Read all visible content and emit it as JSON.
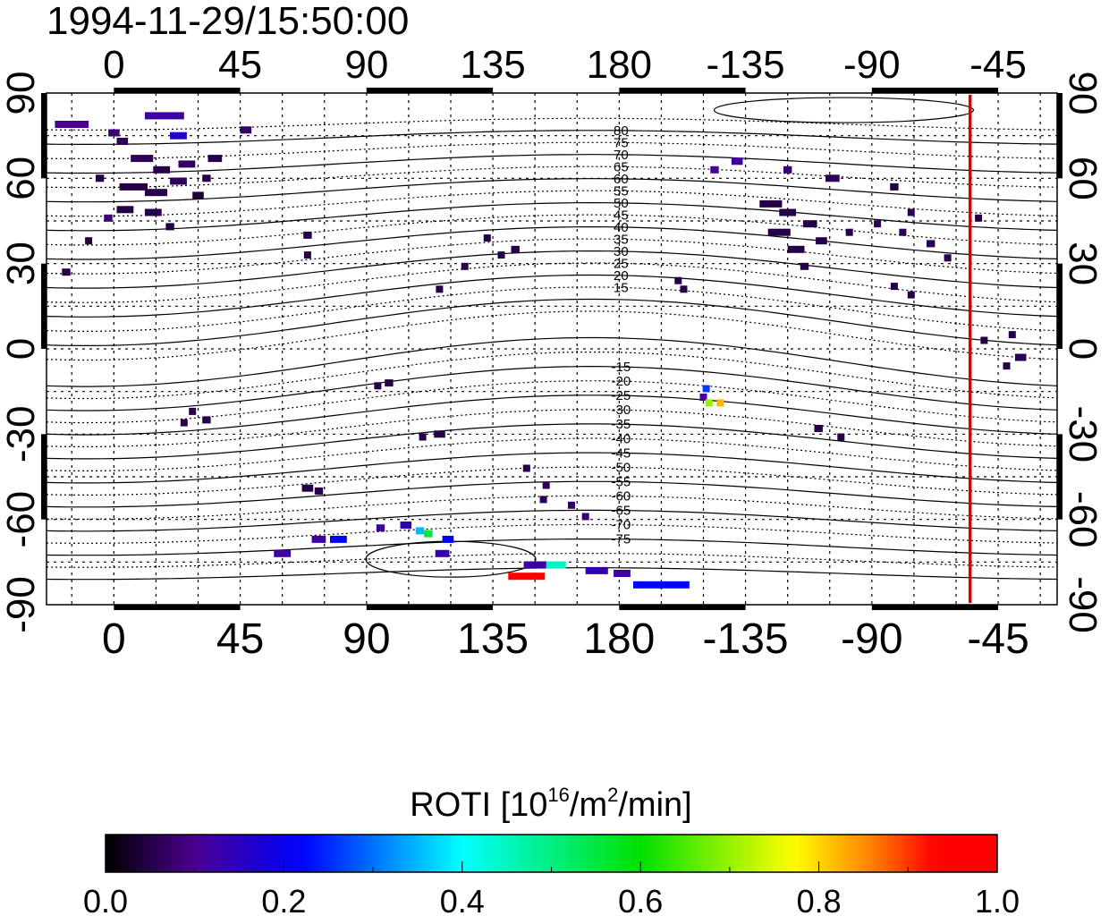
{
  "title": "1994-11-29/15:50:00",
  "chart_data": {
    "type": "map",
    "title": "1994-11-29/15:50:00",
    "x_axis": {
      "label": "Longitude",
      "range": [
        -24,
        336
      ],
      "ticks": [
        "0",
        "45",
        "90",
        "135",
        "180",
        "-135",
        "-90",
        "-45"
      ],
      "tick_values": [
        0,
        45,
        90,
        135,
        180,
        225,
        270,
        315
      ]
    },
    "y_axis": {
      "label": "Latitude",
      "range": [
        -90,
        90
      ],
      "ticks": [
        "90",
        "60",
        "30",
        "0",
        "-30",
        "-60",
        "-90"
      ],
      "tick_values": [
        90,
        60,
        30,
        0,
        -30,
        -60,
        -90
      ]
    },
    "grid": true,
    "terminator_longitude": -55,
    "terminator_color": "#dd0000",
    "magnetic_latitude_labels": [
      "80",
      "75",
      "70",
      "65",
      "60",
      "55",
      "50",
      "45",
      "40",
      "35",
      "30",
      "25",
      "20",
      "15",
      "-15",
      "-20",
      "-25",
      "-30",
      "-35",
      "-40",
      "-45",
      "-50",
      "-55",
      "-60",
      "-65",
      "-70",
      "-75"
    ],
    "magnetic_latitude_values": [
      80,
      75,
      70,
      65,
      60,
      55,
      50,
      45,
      40,
      35,
      30,
      25,
      20,
      15,
      -15,
      -20,
      -25,
      -30,
      -35,
      -40,
      -45,
      -50,
      -55,
      -60,
      -65,
      -70,
      -75
    ],
    "points_format": [
      "lon",
      "lat",
      "roti",
      "lon_span"
    ],
    "points": [
      [
        -15,
        79,
        0.1,
        12
      ],
      [
        18,
        82,
        0.12,
        14
      ],
      [
        0,
        76,
        0.08,
        4
      ],
      [
        23,
        75,
        0.16,
        6
      ],
      [
        10,
        67,
        0.06,
        8
      ],
      [
        17,
        63,
        0.05,
        6
      ],
      [
        26,
        65,
        0.07,
        6
      ],
      [
        36,
        67,
        0.05,
        5
      ],
      [
        7,
        57,
        0.05,
        10
      ],
      [
        15,
        55,
        0.05,
        8
      ],
      [
        23,
        59,
        0.06,
        6
      ],
      [
        30,
        54,
        0.04,
        4
      ],
      [
        4,
        49,
        0.05,
        6
      ],
      [
        14,
        48,
        0.05,
        6
      ],
      [
        20,
        43,
        0.05,
        3
      ],
      [
        -2,
        46,
        0.08,
        3
      ],
      [
        -9,
        38,
        0.04,
        2
      ],
      [
        -17,
        27,
        0.05,
        3
      ],
      [
        3,
        73,
        0.06,
        4
      ],
      [
        33,
        60,
        0.05,
        3
      ],
      [
        47,
        77,
        0.07,
        4
      ],
      [
        69,
        40,
        0.05,
        3
      ],
      [
        69,
        33,
        0.05,
        2
      ],
      [
        -5,
        60,
        0.05,
        3
      ],
      [
        133,
        39,
        0.05,
        2
      ],
      [
        143,
        35,
        0.05,
        3
      ],
      [
        138,
        33,
        0.05,
        2
      ],
      [
        125,
        29,
        0.05,
        2
      ],
      [
        116,
        21,
        0.05,
        2
      ],
      [
        98,
        -12,
        0.05,
        3
      ],
      [
        94,
        -13,
        0.05,
        2
      ],
      [
        116,
        -30,
        0.05,
        4
      ],
      [
        110,
        -31,
        0.05,
        2
      ],
      [
        147,
        -42,
        0.05,
        2
      ],
      [
        154,
        -48,
        0.06,
        2
      ],
      [
        153,
        -53,
        0.06,
        2
      ],
      [
        163,
        -55,
        0.07,
        2
      ],
      [
        168,
        -59,
        0.08,
        2
      ],
      [
        69,
        -49,
        0.05,
        4
      ],
      [
        73,
        -50,
        0.05,
        3
      ],
      [
        28,
        -22,
        0.05,
        2
      ],
      [
        25,
        -26,
        0.05,
        2
      ],
      [
        33,
        -25,
        0.05,
        3
      ],
      [
        -146,
        63,
        0.1,
        3
      ],
      [
        -138,
        66,
        0.12,
        4
      ],
      [
        -120,
        63,
        0.08,
        3
      ],
      [
        -126,
        51,
        0.05,
        8
      ],
      [
        -123,
        41,
        0.05,
        8
      ],
      [
        -117,
        35,
        0.05,
        6
      ],
      [
        -114,
        29,
        0.05,
        3
      ],
      [
        -108,
        38,
        0.05,
        4
      ],
      [
        -98,
        41,
        0.05,
        2
      ],
      [
        -88,
        44,
        0.06,
        2
      ],
      [
        -79,
        41,
        0.06,
        2
      ],
      [
        -69,
        37,
        0.06,
        3
      ],
      [
        -63,
        32,
        0.05,
        2
      ],
      [
        -104,
        60,
        0.06,
        5
      ],
      [
        -82,
        57,
        0.05,
        3
      ],
      [
        -76,
        48,
        0.06,
        2
      ],
      [
        -120,
        48,
        0.05,
        6
      ],
      [
        -112,
        44,
        0.05,
        5
      ],
      [
        -82,
        22,
        0.05,
        2
      ],
      [
        -76,
        19,
        0.05,
        2
      ],
      [
        -157,
        21,
        0.05,
        2
      ],
      [
        -159,
        24,
        0.05,
        2
      ],
      [
        -50,
        3,
        0.05,
        2
      ],
      [
        -40,
        5,
        0.05,
        2
      ],
      [
        -37,
        -3,
        0.06,
        4
      ],
      [
        -42,
        -6,
        0.05,
        2
      ],
      [
        -109,
        -28,
        0.05,
        3
      ],
      [
        -101,
        -31,
        0.05,
        2
      ],
      [
        -52,
        46,
        0.05,
        2
      ],
      [
        -149,
        -14,
        0.26,
        2
      ],
      [
        -150,
        -17,
        0.1,
        2
      ],
      [
        -148,
        -19,
        0.7,
        2
      ],
      [
        -144,
        -19,
        0.82,
        2
      ],
      [
        147,
        -80,
        0.98,
        13
      ],
      [
        157,
        -76,
        0.45,
        8
      ],
      [
        150,
        -76,
        0.12,
        8
      ],
      [
        -165,
        -83,
        0.22,
        20
      ],
      [
        172,
        -78,
        0.14,
        8
      ],
      [
        181,
        -79,
        0.12,
        6
      ],
      [
        109,
        -64,
        0.35,
        3
      ],
      [
        112,
        -65,
        0.55,
        3
      ],
      [
        119,
        -67,
        0.22,
        4
      ],
      [
        104,
        -62,
        0.14,
        4
      ],
      [
        80,
        -67,
        0.22,
        6
      ],
      [
        73,
        -67,
        0.12,
        5
      ],
      [
        60,
        -72,
        0.12,
        6
      ],
      [
        95,
        -63,
        0.12,
        3
      ],
      [
        117,
        -72,
        0.13,
        5
      ]
    ]
  },
  "colorbar": {
    "title_main": "ROTI  [10",
    "title_sup1": "16",
    "title_mid": "/m",
    "title_sup2": "2",
    "title_end": "/min]",
    "min": 0.0,
    "max": 1.0,
    "tick_labels": [
      "0.0",
      "0.2",
      "0.4",
      "0.6",
      "0.8",
      "1.0"
    ],
    "colormap": [
      [
        "0.0",
        "#000000"
      ],
      [
        "0.1",
        "#4a0090"
      ],
      [
        "0.22",
        "#0000ff"
      ],
      [
        "0.4",
        "#00ffff"
      ],
      [
        "0.6",
        "#00e000"
      ],
      [
        "0.77",
        "#ffff00"
      ],
      [
        "0.86",
        "#ff8000"
      ],
      [
        "0.93",
        "#ff0000"
      ],
      [
        "1.0",
        "#ff0000"
      ]
    ]
  }
}
